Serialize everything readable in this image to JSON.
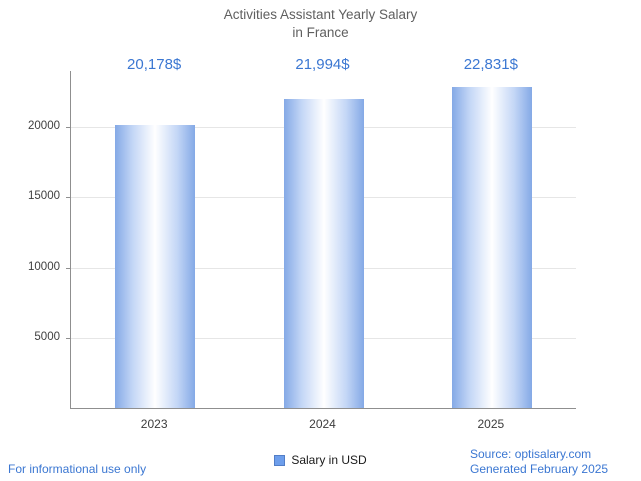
{
  "title": {
    "line1": "Activities Assistant Yearly Salary",
    "line2": "in France"
  },
  "chart_data": {
    "type": "bar",
    "title": "Activities Assistant Yearly Salary in France",
    "categories": [
      "2023",
      "2024",
      "2025"
    ],
    "values": [
      20178,
      21994,
      22831
    ],
    "value_labels": [
      "20,178$",
      "21,994$",
      "22,831$"
    ],
    "xlabel": "",
    "ylabel": "",
    "ylim": [
      0,
      24000
    ],
    "yticks": [
      5000,
      10000,
      15000,
      20000
    ],
    "grid": "horizontal",
    "legend": {
      "label": "Salary in USD",
      "position": "bottom"
    }
  },
  "footer": {
    "disclaimer": "For informational use only",
    "source": "Source: optisalary.com",
    "generated": "Generated February 2025"
  },
  "colors": {
    "accent_blue": "#3b77d2",
    "bar_edge": "#84a9e6",
    "bar_center": "#ffffff",
    "legend_square": "#6d9eeb",
    "axis": "#8f8f8f",
    "grid": "#e6e6e6",
    "title_text": "#5f5f5f",
    "tick_text": "#404040"
  }
}
